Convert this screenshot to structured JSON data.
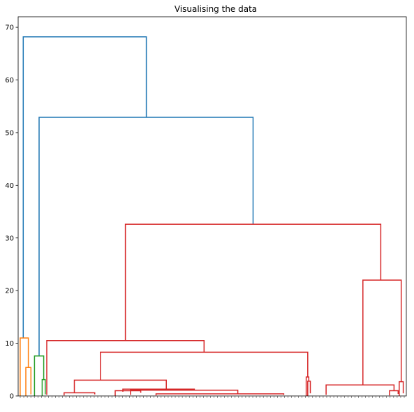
{
  "chart_data": {
    "type": "dendrogram",
    "title": "Visualising the data",
    "xlabel": "",
    "ylabel": "",
    "ylim": [
      0,
      72
    ],
    "yticks": [
      0,
      10,
      20,
      30,
      40,
      50,
      60,
      70
    ],
    "grid": false,
    "legend": "none",
    "colors": {
      "above_threshold": "#1f77b4",
      "cluster_1": "#ff7f0e",
      "cluster_2": "#2ca02c",
      "cluster_3": "#d62728"
    },
    "links": [
      {
        "color": "above_threshold",
        "x": [
          1.0,
          1.0,
          25.1,
          25.1
        ],
        "y": [
          11.0,
          68.2,
          68.2,
          52.9
        ]
      },
      {
        "color": "above_threshold",
        "x": [
          4.1,
          4.1,
          46.0,
          46.0
        ],
        "y": [
          7.6,
          52.9,
          52.9,
          32.6
        ]
      },
      {
        "color": "cluster_3",
        "x": [
          21.0,
          21.0,
          71.0,
          71.0
        ],
        "y": [
          10.5,
          32.6,
          32.6,
          22.0
        ]
      },
      {
        "color": "cluster_3",
        "x": [
          5.6,
          5.6,
          36.4,
          36.4
        ],
        "y": [
          0.2,
          10.5,
          10.5,
          8.3
        ]
      },
      {
        "color": "cluster_3",
        "x": [
          16.1,
          16.1,
          56.7,
          56.7
        ],
        "y": [
          3.0,
          8.3,
          8.3,
          3.6
        ]
      },
      {
        "color": "cluster_3",
        "x": [
          67.5,
          67.5,
          75.0,
          75.0
        ],
        "y": [
          2.1,
          22.0,
          22.0,
          2.7
        ]
      },
      {
        "color": "cluster_3",
        "x": [
          60.3,
          60.3,
          73.6,
          73.6
        ],
        "y": [
          0.2,
          2.1,
          2.1,
          1.0
        ]
      },
      {
        "color": "cluster_3",
        "x": [
          11.0,
          11.0,
          29.0,
          29.0
        ],
        "y": [
          0.6,
          3.0,
          3.0,
          1.3
        ]
      },
      {
        "color": "cluster_3",
        "x": [
          56.4,
          56.4,
          56.9,
          56.9
        ],
        "y": [
          0.0,
          3.6,
          3.6,
          2.8
        ]
      },
      {
        "color": "cluster_3",
        "x": [
          56.7,
          56.7,
          57.2,
          57.2
        ],
        "y": [
          0.0,
          2.8,
          2.8,
          0.5
        ]
      },
      {
        "color": "cluster_3",
        "x": [
          20.5,
          20.5,
          34.5,
          34.5
        ],
        "y": [
          0.8,
          1.3,
          1.3,
          1.1
        ]
      },
      {
        "color": "cluster_3",
        "x": [
          19.0,
          19.0,
          24.0,
          24.0
        ],
        "y": [
          0.0,
          1.0,
          1.0,
          0.6
        ]
      },
      {
        "color": "cluster_3",
        "x": [
          22.0,
          22.0,
          43.0,
          43.0
        ],
        "y": [
          0.2,
          1.1,
          1.1,
          0.4
        ]
      },
      {
        "color": "cluster_3",
        "x": [
          9.0,
          9.0,
          15.0,
          15.0
        ],
        "y": [
          0.1,
          0.6,
          0.6,
          0.3
        ]
      },
      {
        "color": "cluster_3",
        "x": [
          27.0,
          27.0,
          52.0,
          52.0
        ],
        "y": [
          0.1,
          0.4,
          0.4,
          0.2
        ]
      },
      {
        "color": "cluster_3",
        "x": [
          74.6,
          74.6,
          75.4,
          75.4
        ],
        "y": [
          0.0,
          2.7,
          2.7,
          0.5
        ]
      },
      {
        "color": "cluster_3",
        "x": [
          72.7,
          72.7,
          74.4,
          74.4
        ],
        "y": [
          0.1,
          1.0,
          1.0,
          0.4
        ]
      },
      {
        "color": "cluster_1",
        "x": [
          0.4,
          0.4,
          2.0,
          2.0
        ],
        "y": [
          0.0,
          11.0,
          11.0,
          5.4
        ]
      },
      {
        "color": "cluster_1",
        "x": [
          1.5,
          1.5,
          2.5,
          2.5
        ],
        "y": [
          0.0,
          5.4,
          5.4,
          0.3
        ]
      },
      {
        "color": "cluster_2",
        "x": [
          3.2,
          3.2,
          5.0,
          5.0
        ],
        "y": [
          0.0,
          7.6,
          7.6,
          3.1
        ]
      },
      {
        "color": "cluster_2",
        "x": [
          4.7,
          4.7,
          5.3,
          5.3
        ],
        "y": [
          0.0,
          3.1,
          3.1,
          0.3
        ]
      }
    ]
  }
}
